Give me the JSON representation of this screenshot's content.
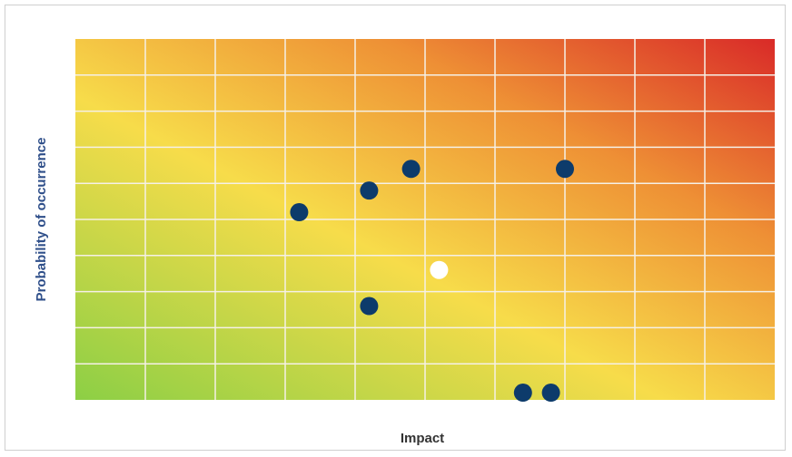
{
  "chart_data": {
    "type": "scatter",
    "title": "",
    "xlabel": "Impact",
    "ylabel": "Probability of occurrence",
    "xlim": [
      0,
      10
    ],
    "ylim": [
      0,
      10
    ],
    "grid": true,
    "grid_divisions": {
      "x": 10,
      "y": 10
    },
    "background": "heatmap gradient green (bottom-left) to yellow to red (top-right)",
    "colors": {
      "point": "#0d3b6b",
      "highlight_point": "#ffffff",
      "grid": "#f5f0e6",
      "green": "#8ccf45",
      "yellow": "#f7dc4a",
      "orange": "#ee9035",
      "red": "#d92a28"
    },
    "points": [
      {
        "x": 3.2,
        "y": 5.2,
        "highlight": false
      },
      {
        "x": 4.2,
        "y": 5.8,
        "highlight": false
      },
      {
        "x": 4.8,
        "y": 6.4,
        "highlight": false
      },
      {
        "x": 7.0,
        "y": 6.4,
        "highlight": false
      },
      {
        "x": 5.2,
        "y": 3.6,
        "highlight": true
      },
      {
        "x": 4.2,
        "y": 2.6,
        "highlight": false
      },
      {
        "x": 6.4,
        "y": 0.2,
        "highlight": false
      },
      {
        "x": 6.8,
        "y": 0.2,
        "highlight": false
      }
    ]
  }
}
